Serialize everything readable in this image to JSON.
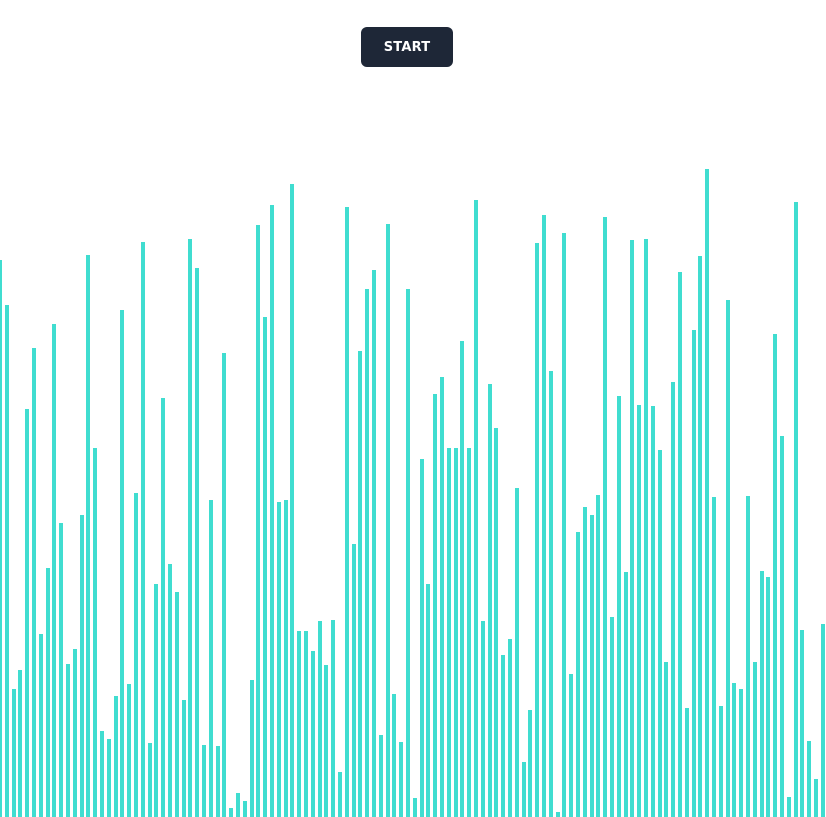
{
  "controls": {
    "start_label": "START"
  },
  "colors": {
    "bar": "#40ddd0",
    "button_bg": "#1e2737",
    "button_text": "#ffffff",
    "background": "#ffffff"
  },
  "bars": {
    "max_value": 817,
    "values": [
      557,
      512,
      128,
      147,
      408,
      469,
      183,
      249,
      493,
      294,
      153,
      168,
      302,
      562,
      369,
      86,
      78,
      121,
      507,
      133,
      324,
      575,
      74,
      233,
      419,
      253,
      225,
      117,
      578,
      549,
      72,
      317,
      71,
      464,
      9,
      24,
      16,
      137,
      592,
      500,
      612,
      315,
      317,
      633,
      186,
      186,
      166,
      196,
      152,
      197,
      45,
      610,
      273,
      466,
      528,
      547,
      82,
      593,
      123,
      75,
      528,
      19,
      358,
      233,
      423,
      440,
      369,
      369,
      476,
      369,
      617,
      196,
      433,
      389,
      162,
      178,
      329,
      55,
      107,
      574,
      602,
      446,
      5,
      584,
      143,
      285,
      310,
      302,
      322,
      600,
      200,
      421,
      245,
      577,
      412,
      578,
      411,
      367,
      155,
      435,
      545,
      109,
      487,
      561,
      648,
      320,
      111,
      517,
      134,
      128,
      321,
      155,
      246,
      240,
      483,
      381,
      20,
      615,
      187,
      76,
      38,
      193
    ]
  }
}
